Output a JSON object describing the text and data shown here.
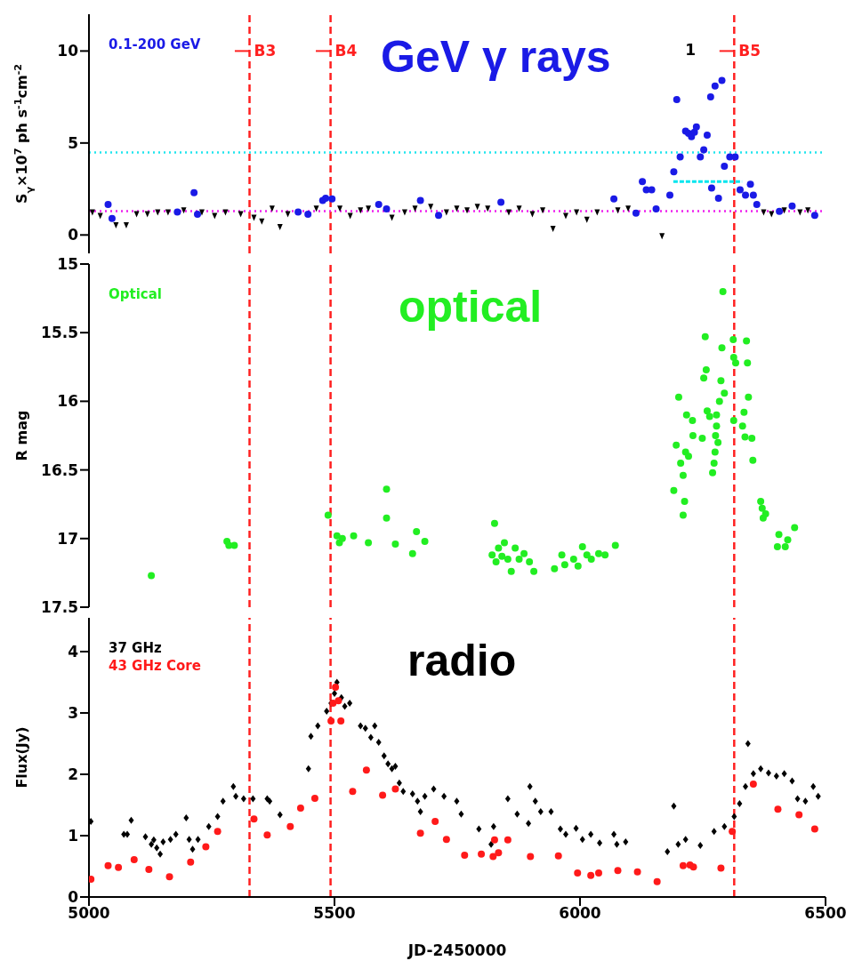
{
  "chart_data": [
    {
      "type": "scatter",
      "title": "GeV γ rays",
      "ylabel": "S$_{γ}$×10$^{7}$ ph s$^{-1}$cm$^{-2}$",
      "xlim": [
        5000,
        6500
      ],
      "xticks": [
        5000,
        5500,
        6000,
        6500
      ],
      "ylim": [
        -1,
        12
      ],
      "yticks": [
        0,
        5,
        10
      ],
      "tick_labels": "y",
      "legend": "top left",
      "grid": false,
      "series": [
        {
          "name": "0.1-200 GeV",
          "color": "#1a1ae6",
          "marker": "circle",
          "x": [
            5039,
            5047,
            5180,
            5214,
            5221,
            5426,
            5446,
            5476,
            5482,
            5495,
            5590,
            5606,
            5675,
            5712,
            5839,
            6069,
            6114,
            6127,
            6135,
            6146,
            6155,
            6183,
            6191,
            6197,
            6204,
            6215,
            6221,
            6227,
            6233,
            6237,
            6245,
            6252,
            6259,
            6266,
            6275,
            6268,
            6282,
            6289,
            6294,
            6305,
            6316,
            6326,
            6337,
            6347,
            6353,
            6360,
            6406,
            6432,
            6478
          ],
          "values": [
            1.66,
            0.9,
            1.25,
            2.3,
            1.13,
            1.25,
            1.13,
            1.87,
            2.0,
            1.96,
            1.66,
            1.42,
            1.87,
            1.07,
            1.78,
            1.96,
            1.19,
            2.9,
            2.46,
            2.46,
            1.42,
            2.17,
            3.44,
            7.36,
            4.24,
            5.64,
            5.52,
            5.34,
            5.58,
            5.88,
            4.24,
            4.63,
            5.43,
            7.5,
            8.1,
            2.55,
            2.0,
            8.4,
            3.74,
            4.24,
            4.24,
            2.46,
            2.17,
            2.76,
            2.17,
            1.66,
            1.28,
            1.57,
            1.07
          ]
        },
        {
          "color": "#000000",
          "marker": "triangle",
          "x": [
            5007,
            5023,
            5055,
            5076,
            5097,
            5119,
            5140,
            5161,
            5193,
            5230,
            5256,
            5278,
            5309,
            5336,
            5352,
            5373,
            5389,
            5405,
            5463,
            5511,
            5532,
            5553,
            5569,
            5617,
            5643,
            5664,
            5696,
            5728,
            5749,
            5770,
            5791,
            5812,
            5855,
            5876,
            5903,
            5924,
            5945,
            5971,
            5993,
            6014,
            6035,
            6077,
            6098,
            6167,
            6374,
            6390,
            6416,
            6448,
            6464
          ],
          "values": [
            1.3,
            1.1,
            0.6,
            0.6,
            1.2,
            1.2,
            1.3,
            1.3,
            1.4,
            1.3,
            1.1,
            1.3,
            1.2,
            1.0,
            0.8,
            1.5,
            0.5,
            1.2,
            1.5,
            1.5,
            1.1,
            1.4,
            1.5,
            1.0,
            1.3,
            1.5,
            1.6,
            1.3,
            1.5,
            1.4,
            1.6,
            1.5,
            1.3,
            1.5,
            1.2,
            1.4,
            0.4,
            1.1,
            1.3,
            0.9,
            1.3,
            1.4,
            1.5,
            0.0,
            1.3,
            1.2,
            1.4,
            1.3,
            1.4
          ]
        },
        {
          "type": "line",
          "color": "#00e5ee",
          "line_style": "dashed",
          "marker": "none",
          "x": [
            6190,
            6330
          ],
          "values": [
            2.9,
            2.9
          ]
        }
      ],
      "ref_lines": [
        {
          "axis": "x",
          "value": 5327,
          "color": "#ff2020",
          "line_style": "dashed"
        },
        {
          "axis": "x",
          "value": 5492,
          "color": "#ff2020",
          "line_style": "dashed"
        },
        {
          "axis": "x",
          "value": 6314,
          "color": "#ff2020",
          "line_style": "dashed"
        },
        {
          "axis": "y",
          "value": 4.48,
          "color": "#20e5ee",
          "line_style": "dotted"
        },
        {
          "axis": "y",
          "value": 1.3,
          "color": "#ee20ee",
          "line_style": "dotted"
        }
      ],
      "annotations": [
        {
          "text": "B3",
          "x": 5327,
          "y": 10
        },
        {
          "text": "B4",
          "x": 5492,
          "y": 10
        },
        {
          "text": "B5",
          "x": 6314,
          "y": 10
        },
        "1"
      ]
    },
    {
      "type": "scatter",
      "title": "optical",
      "ylabel": "R mag",
      "xlim": [
        5000,
        6500
      ],
      "xticks": [
        5000,
        5500,
        6000,
        6500
      ],
      "ylim": [
        17.5,
        15
      ],
      "yticks": [
        15,
        15.5,
        16,
        16.5,
        17,
        17.5
      ],
      "tick_labels": "y",
      "legend": "top left",
      "grid": false,
      "series": [
        {
          "name": "Optical",
          "color": "#22ee22",
          "marker": "circle",
          "x": [
            5127,
            5281,
            5285,
            5296,
            5487,
            5505,
            5510,
            5516,
            5539,
            5569,
            5606,
            5606,
            5624,
            5659,
            5667,
            5684,
            5826,
            5821,
            5829,
            5834,
            5841,
            5846,
            5853,
            5860,
            5868,
            5876,
            5886,
            5897,
            5906,
            5948,
            5963,
            5969,
            5987,
            5996,
            6005,
            6014,
            6023,
            6038,
            6051,
            6072,
            6191,
            6201,
            6196,
            6205,
            6210,
            6213,
            6210,
            6215,
            6221,
            6217,
            6229,
            6230,
            6249,
            6252,
            6255,
            6257,
            6259,
            6264,
            6270,
            6273,
            6275,
            6276,
            6278,
            6278,
            6284,
            6287,
            6289,
            6291,
            6294,
            6281,
            6312,
            6313,
            6317,
            6313,
            6331,
            6334,
            6336,
            6339,
            6341,
            6343,
            6350,
            6352,
            6368,
            6371,
            6373,
            6378,
            6402,
            6405,
            6418,
            6423,
            6437
          ],
          "values": [
            17.27,
            17.02,
            17.05,
            17.05,
            16.83,
            16.98,
            17.03,
            17.0,
            16.98,
            17.03,
            16.64,
            16.85,
            17.04,
            17.11,
            16.95,
            17.02,
            16.89,
            17.12,
            17.17,
            17.07,
            17.13,
            17.03,
            17.15,
            17.24,
            17.07,
            17.15,
            17.11,
            17.17,
            17.24,
            17.22,
            17.12,
            17.19,
            17.15,
            17.2,
            17.06,
            17.12,
            17.15,
            17.11,
            17.12,
            17.05,
            16.65,
            15.97,
            16.32,
            16.45,
            16.54,
            16.73,
            16.83,
            16.37,
            16.4,
            16.1,
            16.14,
            16.25,
            16.27,
            15.83,
            15.53,
            15.77,
            16.07,
            16.11,
            16.52,
            16.45,
            16.37,
            16.25,
            16.18,
            16.1,
            16.0,
            15.85,
            15.61,
            15.2,
            15.94,
            16.3,
            15.55,
            15.68,
            15.72,
            16.14,
            16.18,
            16.08,
            16.26,
            15.56,
            15.72,
            15.97,
            16.27,
            16.43,
            16.73,
            16.78,
            16.85,
            16.82,
            17.06,
            16.97,
            17.06,
            17.01,
            16.92
          ]
        }
      ],
      "ref_lines": [
        {
          "axis": "x",
          "value": 5327,
          "color": "#ff2020",
          "line_style": "dashed"
        },
        {
          "axis": "x",
          "value": 5492,
          "color": "#ff2020",
          "line_style": "dashed"
        },
        {
          "axis": "x",
          "value": 6314,
          "color": "#ff2020",
          "line_style": "dashed"
        }
      ]
    },
    {
      "type": "scatter",
      "title": "radio",
      "xlabel": "JD-2450000",
      "ylabel": "Flux(Jy)",
      "xlim": [
        5000,
        6500
      ],
      "xticks": [
        5000,
        5500,
        6000,
        6500
      ],
      "ylim": [
        0,
        4.55
      ],
      "yticks": [
        0,
        1,
        2,
        3,
        4
      ],
      "legend": "top left",
      "grid": false,
      "series": [
        {
          "name": "37 GHz",
          "color": "#000000",
          "marker": "diamond",
          "x": [
            5004,
            5071,
            5078,
            5086,
            5115,
            5127,
            5132,
            5138,
            5145,
            5151,
            5166,
            5177,
            5198,
            5204,
            5211,
            5222,
            5244,
            5262,
            5273,
            5294,
            5299,
            5315,
            5334,
            5363,
            5368,
            5389,
            5447,
            5452,
            5466,
            5484,
            5493,
            5500,
            5505,
            5514,
            5521,
            5531,
            5553,
            5563,
            5574,
            5582,
            5590,
            5601,
            5609,
            5617,
            5624,
            5632,
            5640,
            5659,
            5669,
            5675,
            5684,
            5702,
            5723,
            5749,
            5758,
            5794,
            5819,
            5824,
            5853,
            5872,
            5895,
            5898,
            5909,
            5920,
            5941,
            5960,
            5971,
            5992,
            6005,
            6022,
            6040,
            6069,
            6075,
            6093,
            6178,
            6191,
            6200,
            6215,
            6245,
            6273,
            6294,
            6314,
            6325,
            6337,
            6342,
            6353,
            6368,
            6384,
            6400,
            6416,
            6432,
            6443,
            6459,
            6475,
            6485
          ],
          "values": [
            1.23,
            1.02,
            1.02,
            1.25,
            0.98,
            0.86,
            0.93,
            0.8,
            0.7,
            0.9,
            0.94,
            1.02,
            1.29,
            0.94,
            0.78,
            0.94,
            1.15,
            1.31,
            1.56,
            1.8,
            1.64,
            1.6,
            1.6,
            1.6,
            1.56,
            1.34,
            2.09,
            2.62,
            2.79,
            3.03,
            3.16,
            3.32,
            3.5,
            3.25,
            3.11,
            3.16,
            2.79,
            2.75,
            2.6,
            2.79,
            2.52,
            2.3,
            2.17,
            2.09,
            2.13,
            1.86,
            1.72,
            1.68,
            1.56,
            1.39,
            1.64,
            1.76,
            1.64,
            1.56,
            1.35,
            1.11,
            0.86,
            1.15,
            1.6,
            1.35,
            1.2,
            1.8,
            1.56,
            1.39,
            1.39,
            1.11,
            1.02,
            1.12,
            0.94,
            1.02,
            0.88,
            1.02,
            0.86,
            0.9,
            0.74,
            1.48,
            0.86,
            0.94,
            0.84,
            1.07,
            1.15,
            1.31,
            1.52,
            1.8,
            2.5,
            2.01,
            2.09,
            2.02,
            1.97,
            2.01,
            1.89,
            1.6,
            1.56,
            1.8,
            1.64
          ]
        },
        {
          "name": "43 GHz Core",
          "color": "#ff1a1a",
          "marker": "circle",
          "x": [
            5004,
            5039,
            5060,
            5092,
            5122,
            5164,
            5207,
            5238,
            5262,
            5336,
            5363,
            5410,
            5431,
            5460,
            5493,
            5497,
            5502,
            5508,
            5513,
            5537,
            5565,
            5598,
            5624,
            5675,
            5705,
            5728,
            5765,
            5799,
            5823,
            5826,
            5834,
            5853,
            5899,
            5956,
            5995,
            6022,
            6038,
            6077,
            6117,
            6157,
            6210,
            6224,
            6231,
            6287,
            6310,
            6353,
            6403,
            6446,
            6478
          ],
          "values": [
            0.29,
            0.51,
            0.48,
            0.61,
            0.45,
            0.33,
            0.57,
            0.82,
            1.07,
            1.27,
            1.01,
            1.15,
            1.45,
            1.61,
            2.87,
            3.16,
            3.42,
            3.2,
            2.87,
            1.72,
            2.07,
            1.66,
            1.76,
            1.04,
            1.23,
            0.94,
            0.68,
            0.7,
            0.66,
            0.93,
            0.72,
            0.93,
            0.66,
            0.67,
            0.39,
            0.35,
            0.39,
            0.43,
            0.41,
            0.25,
            0.51,
            0.52,
            0.49,
            0.47,
            1.07,
            1.84,
            1.43,
            1.34,
            1.11
          ]
        }
      ],
      "ref_lines": [
        {
          "axis": "x",
          "value": 5327,
          "color": "#ff2020",
          "line_style": "dashed"
        },
        {
          "axis": "x",
          "value": 5492,
          "color": "#ff2020",
          "line_style": "dashed"
        },
        {
          "axis": "x",
          "value": 6314,
          "color": "#ff2020",
          "line_style": "dashed"
        }
      ]
    }
  ]
}
